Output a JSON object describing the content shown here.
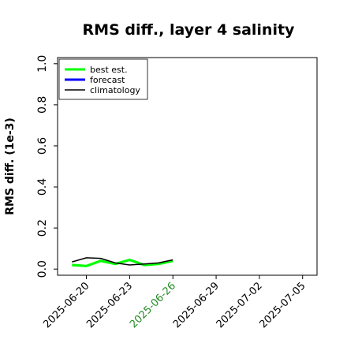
{
  "chart_data": {
    "type": "line",
    "title": "RMS diff., layer 4 salinity",
    "xlabel": "",
    "ylabel": "RMS diff. (1e-3)",
    "x_tick_labels": [
      "2025-06-20",
      "2025-06-23",
      "2025-06-26",
      "2025-06-29",
      "2025-07-02",
      "2025-07-05"
    ],
    "highlighted_tick": "2025-06-26",
    "highlight_color": "#228B22",
    "xlim": [
      "2025-06-18",
      "2025-07-06"
    ],
    "ylim": [
      -0.03,
      1.03
    ],
    "y_ticks": [
      "0.0",
      "0.2",
      "0.4",
      "0.6",
      "0.8",
      "1.0"
    ],
    "grid": false,
    "legend_position": "top-left",
    "series": [
      {
        "name": "best est.",
        "color": "#00ff00",
        "x": [
          "2025-06-19",
          "2025-06-20",
          "2025-06-21",
          "2025-06-22",
          "2025-06-23",
          "2025-06-24",
          "2025-06-25",
          "2025-06-26"
        ],
        "values": [
          0.02,
          0.015,
          0.04,
          0.025,
          0.045,
          0.02,
          0.025,
          0.04
        ]
      },
      {
        "name": "forecast",
        "color": "#0000ff",
        "x": [],
        "values": []
      },
      {
        "name": "climatology",
        "color": "#000000",
        "x": [
          "2025-06-19",
          "2025-06-20",
          "2025-06-21",
          "2025-06-22",
          "2025-06-23",
          "2025-06-24",
          "2025-06-25",
          "2025-06-26"
        ],
        "values": [
          0.035,
          0.055,
          0.052,
          0.03,
          0.02,
          0.025,
          0.03,
          0.045
        ]
      }
    ]
  }
}
